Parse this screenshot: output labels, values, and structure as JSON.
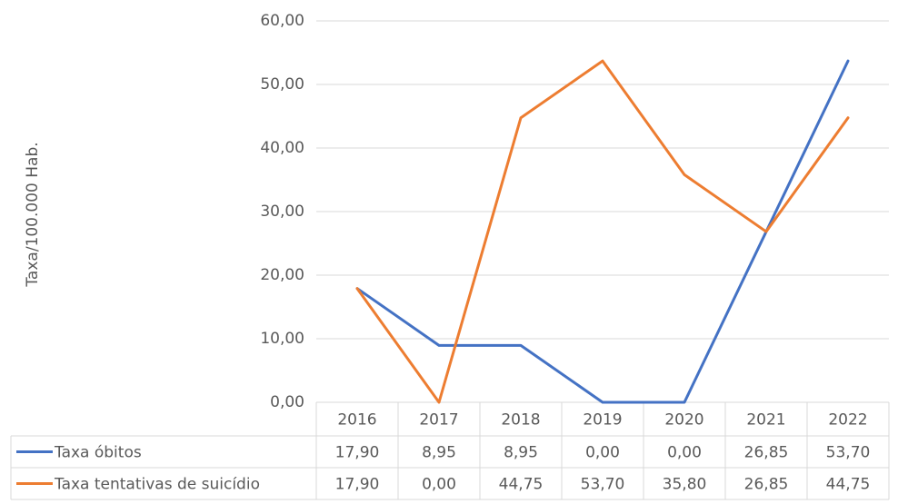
{
  "chart_data": {
    "type": "line",
    "y_label": "Taxa/100.000 Hab.",
    "categories": [
      "2016",
      "2017",
      "2018",
      "2019",
      "2020",
      "2021",
      "2022"
    ],
    "series": [
      {
        "name": "Taxa óbitos",
        "color": "#4472c4",
        "values": [
          17.9,
          8.95,
          8.95,
          0,
          0,
          26.85,
          53.7
        ],
        "value_labels": [
          "17,90",
          "8,95",
          "8,95",
          "0,00",
          "0,00",
          "26,85",
          "53,70"
        ]
      },
      {
        "name": "Taxa tentativas de suicídio",
        "color": "#ed7d31",
        "values": [
          17.9,
          0,
          44.75,
          53.7,
          35.8,
          26.85,
          44.75
        ],
        "value_labels": [
          "17,90",
          "0,00",
          "44,75",
          "53,70",
          "35,80",
          "26,85",
          "44,75"
        ]
      }
    ],
    "ylim": [
      0,
      60
    ],
    "yticks": [
      {
        "value": 0,
        "label": "0,00"
      },
      {
        "value": 10,
        "label": "10,00"
      },
      {
        "value": 20,
        "label": "20,00"
      },
      {
        "value": 30,
        "label": "30,00"
      },
      {
        "value": 40,
        "label": "40,00"
      },
      {
        "value": 50,
        "label": "50,00"
      },
      {
        "value": 60,
        "label": "60,00"
      }
    ],
    "grid": true,
    "data_table": true
  }
}
